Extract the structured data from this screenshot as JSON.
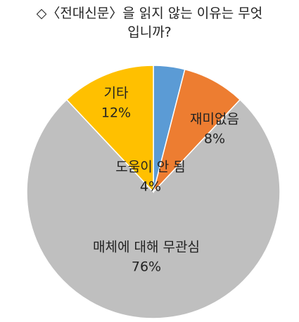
{
  "chart_data": {
    "type": "pie",
    "title": "◇〈전대신문〉을 읽지 않는 이유는 무엇입니까?",
    "categories": [
      "도움이 안 됨",
      "재미없음",
      "매체에 대해 무관심",
      "기타"
    ],
    "values": [
      4,
      8,
      76,
      12
    ],
    "value_labels": [
      "4%",
      "8%",
      "76%",
      "12%"
    ],
    "colors": [
      "#5b9bd5",
      "#ed7d31",
      "#bfbfbf",
      "#ffc000"
    ]
  }
}
